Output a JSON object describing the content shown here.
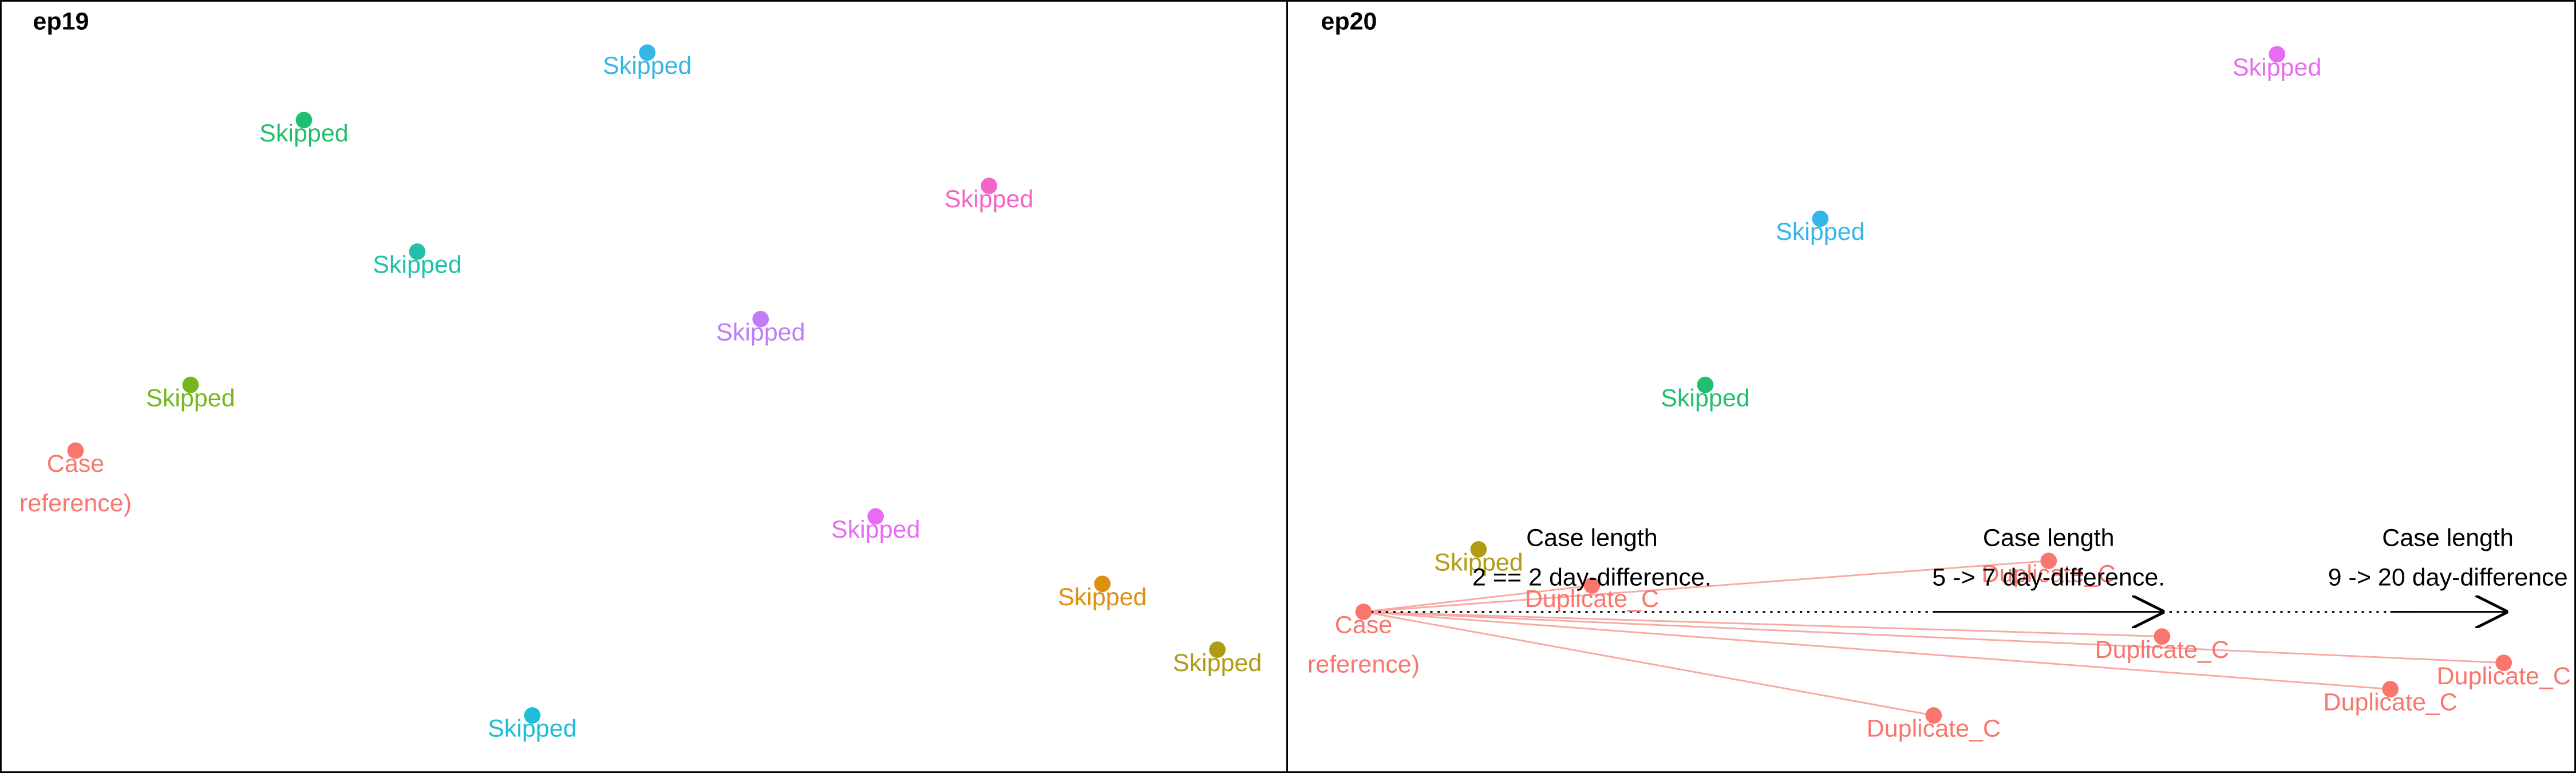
{
  "panels": [
    {
      "title": "ep19",
      "nodes": [
        {
          "lines": [
            "Skipped"
          ],
          "color": "#35b5ea"
        },
        {
          "lines": [
            "Skipped"
          ],
          "color": "#1fbf6e"
        },
        {
          "lines": [
            "Skipped"
          ],
          "color": "#f564c8"
        },
        {
          "lines": [
            "Skipped"
          ],
          "color": "#22c0a8"
        },
        {
          "lines": [
            "Skipped"
          ],
          "color": "#c07cf7"
        },
        {
          "lines": [
            "Skipped"
          ],
          "color": "#72b81c"
        },
        {
          "lines": [
            "Case",
            "reference)"
          ],
          "color": "#f8766d"
        },
        {
          "lines": [
            "Skipped"
          ],
          "color": "#e76bf3"
        },
        {
          "lines": [
            "Skipped"
          ],
          "color": "#dc9112"
        },
        {
          "lines": [
            "Skipped"
          ],
          "color": "#b09c14"
        },
        {
          "lines": [
            "Skipped"
          ],
          "color": "#1fbcd6"
        }
      ],
      "annotations": []
    },
    {
      "title": "ep20",
      "nodes": [
        {
          "lines": [
            "Skipped"
          ],
          "color": "#e76bf3"
        },
        {
          "lines": [
            "Skipped"
          ],
          "color": "#35b5ea"
        },
        {
          "lines": [
            "Skipped"
          ],
          "color": "#1fbf6e"
        },
        {
          "lines": [
            "Skipped"
          ],
          "color": "#b09c14"
        },
        {
          "lines": [
            "Case",
            "reference)"
          ],
          "color": "#f8766d"
        },
        {
          "lines": [
            "Duplicate_C"
          ],
          "color": "#f8766d"
        },
        {
          "lines": [
            "Duplicate_C"
          ],
          "color": "#f8766d"
        },
        {
          "lines": [
            "Duplicate_C"
          ],
          "color": "#f8766d"
        },
        {
          "lines": [
            "Duplicate_C"
          ],
          "color": "#f8766d"
        },
        {
          "lines": [
            "Duplicate_C"
          ],
          "color": "#f8766d"
        },
        {
          "lines": [
            "Duplicate_C"
          ],
          "color": "#f8766d"
        }
      ],
      "annotations": [
        {
          "heading": "Case length",
          "text": "2 == 2 day-difference."
        },
        {
          "heading": "Case length",
          "text": "5 -> 7 day-difference."
        },
        {
          "heading": "Case length",
          "text": "9 -> 20 day-difference"
        }
      ]
    }
  ]
}
